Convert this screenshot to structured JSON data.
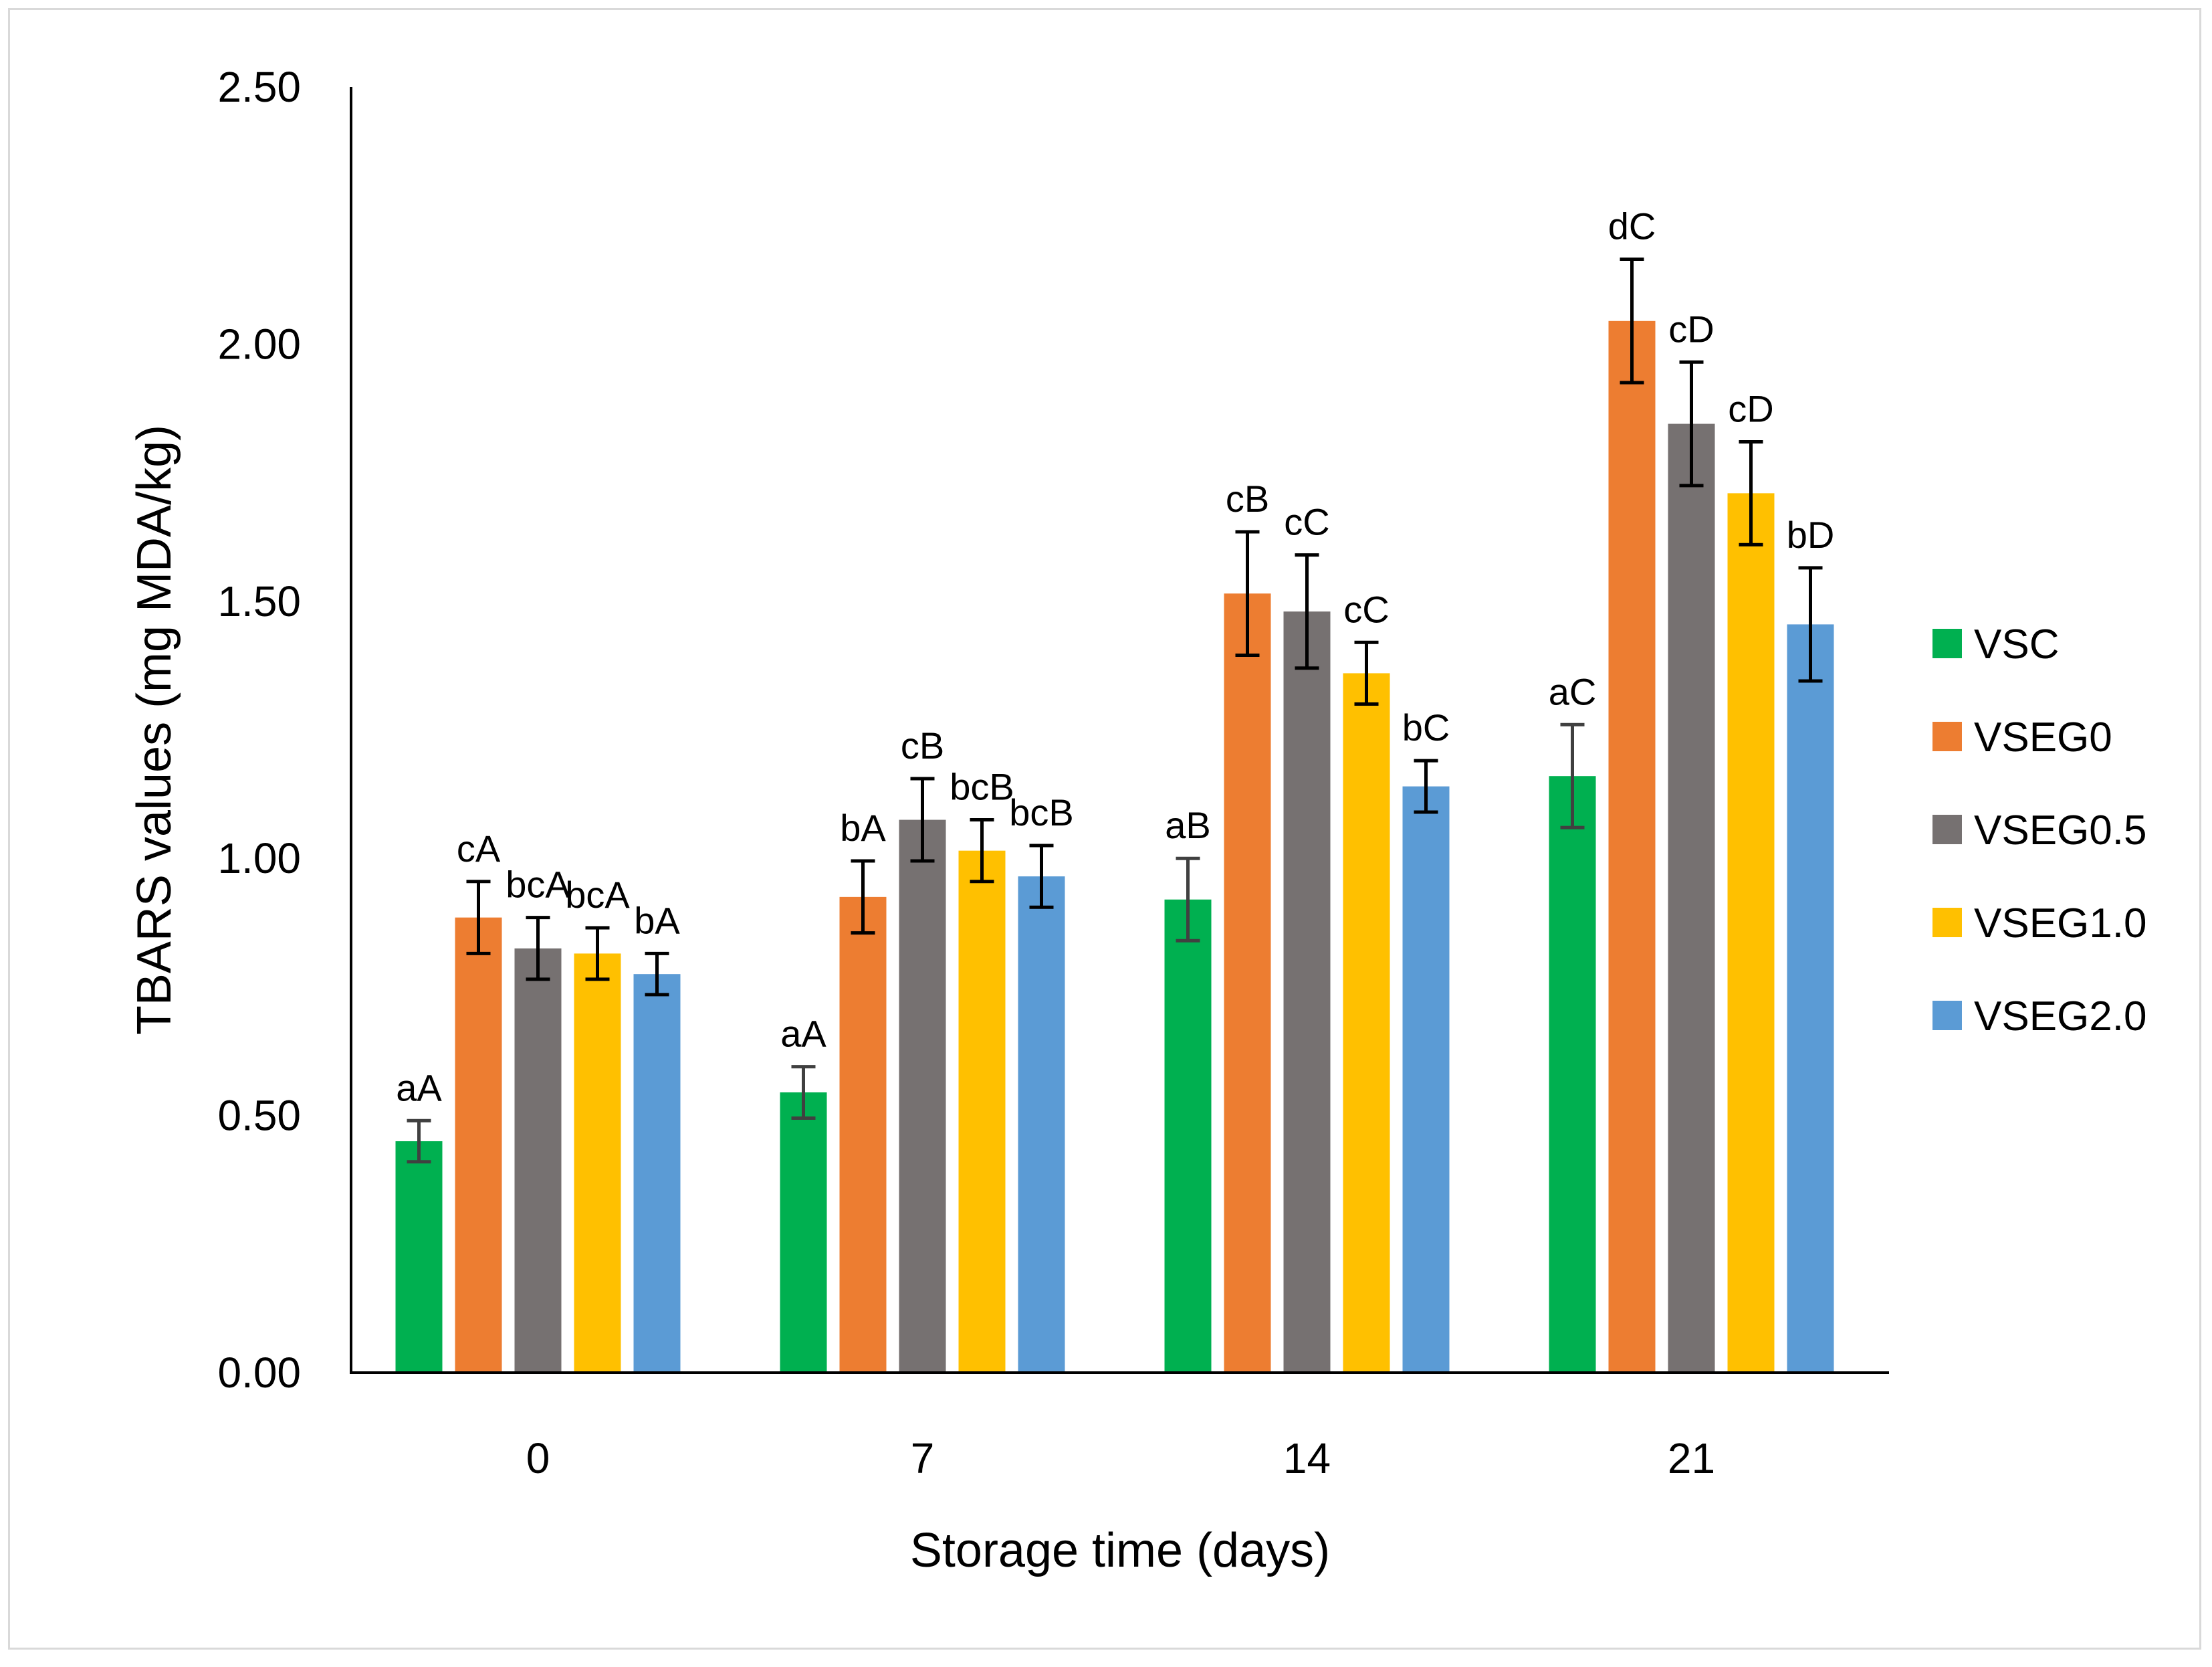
{
  "chart_data": {
    "type": "bar",
    "title": "",
    "xlabel": "Storage time (days)",
    "ylabel": "TBARS values (mg MDA/kg)",
    "ylim": [
      0,
      2.5
    ],
    "yticks": [
      "0.00",
      "0.50",
      "1.00",
      "1.50",
      "2.00",
      "2.50"
    ],
    "categories": [
      "0",
      "7",
      "14",
      "21"
    ],
    "legend_position": "right",
    "series": [
      {
        "name": "VSC",
        "color": "#00b050",
        "values": [
          0.45,
          0.545,
          0.92,
          1.16
        ],
        "errors": [
          0.04,
          0.05,
          0.08,
          0.1
        ],
        "labels": [
          "aA",
          "aA",
          "aB",
          "aC"
        ]
      },
      {
        "name": "VSEG0",
        "color": "#ed7d31",
        "values": [
          0.885,
          0.925,
          1.515,
          2.045
        ],
        "errors": [
          0.07,
          0.07,
          0.12,
          0.12
        ],
        "labels": [
          "cA",
          "bA",
          "cB",
          "dC"
        ]
      },
      {
        "name": "VSEG0.5",
        "color": "#767171",
        "values": [
          0.825,
          1.075,
          1.48,
          1.845
        ],
        "errors": [
          0.06,
          0.08,
          0.11,
          0.12
        ],
        "labels": [
          "bcA",
          "cB",
          "cC",
          "cD"
        ]
      },
      {
        "name": "VSEG1.0",
        "color": "#ffc000",
        "values": [
          0.815,
          1.015,
          1.36,
          1.71
        ],
        "errors": [
          0.05,
          0.06,
          0.06,
          0.1
        ],
        "labels": [
          "bcA",
          "bcB",
          "cC",
          "cD"
        ]
      },
      {
        "name": "VSEG2.0",
        "color": "#5b9bd5",
        "values": [
          0.775,
          0.965,
          1.14,
          1.455
        ],
        "errors": [
          0.04,
          0.06,
          0.05,
          0.11
        ],
        "labels": [
          "bA",
          "bcB",
          "bC",
          "bD"
        ]
      }
    ]
  }
}
